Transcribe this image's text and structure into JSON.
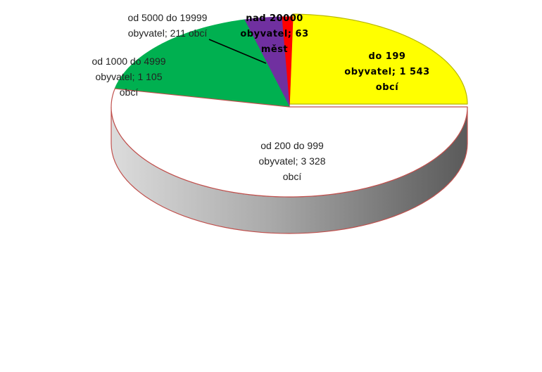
{
  "chart_data": {
    "type": "pie",
    "style": "3d-exploded-perspective",
    "title": "",
    "slices": [
      {
        "key": "s199",
        "category": "do 199 obyvatel",
        "value": 1543,
        "unit": "obcí",
        "color": "#ffff00",
        "label_lines": [
          "do 199",
          "obyvatel; 1 543",
          "obcí"
        ]
      },
      {
        "key": "s999",
        "category": "od 200 do 999 obyvatel",
        "value": 3328,
        "unit": "obcí",
        "color": "#ffffff",
        "label_lines": [
          "od 200 do 999",
          "obyvatel; 3 328",
          "obcí"
        ]
      },
      {
        "key": "s4999",
        "category": "od 1000 do 4999 obyvatel",
        "value": 1105,
        "unit": "obcí",
        "color": "#00b050",
        "label_lines": [
          "od  1000 do 4999",
          "obyvatel; 1 105",
          "obcí"
        ]
      },
      {
        "key": "s19999",
        "category": "od 5000 do 19999 obyvatel",
        "value": 211,
        "unit": "obcí",
        "color": "#7030a0",
        "label_lines": [
          "od 5000 do 19999",
          "obyvatel; 211 obcí"
        ]
      },
      {
        "key": "s20000",
        "category": "nad 20000 obyvatel",
        "value": 63,
        "unit": "měst",
        "color": "#ff0000",
        "label_lines": [
          "nad  20000",
          "obyvatel; 63",
          "měst"
        ]
      }
    ],
    "legend": "none",
    "grid": false
  }
}
